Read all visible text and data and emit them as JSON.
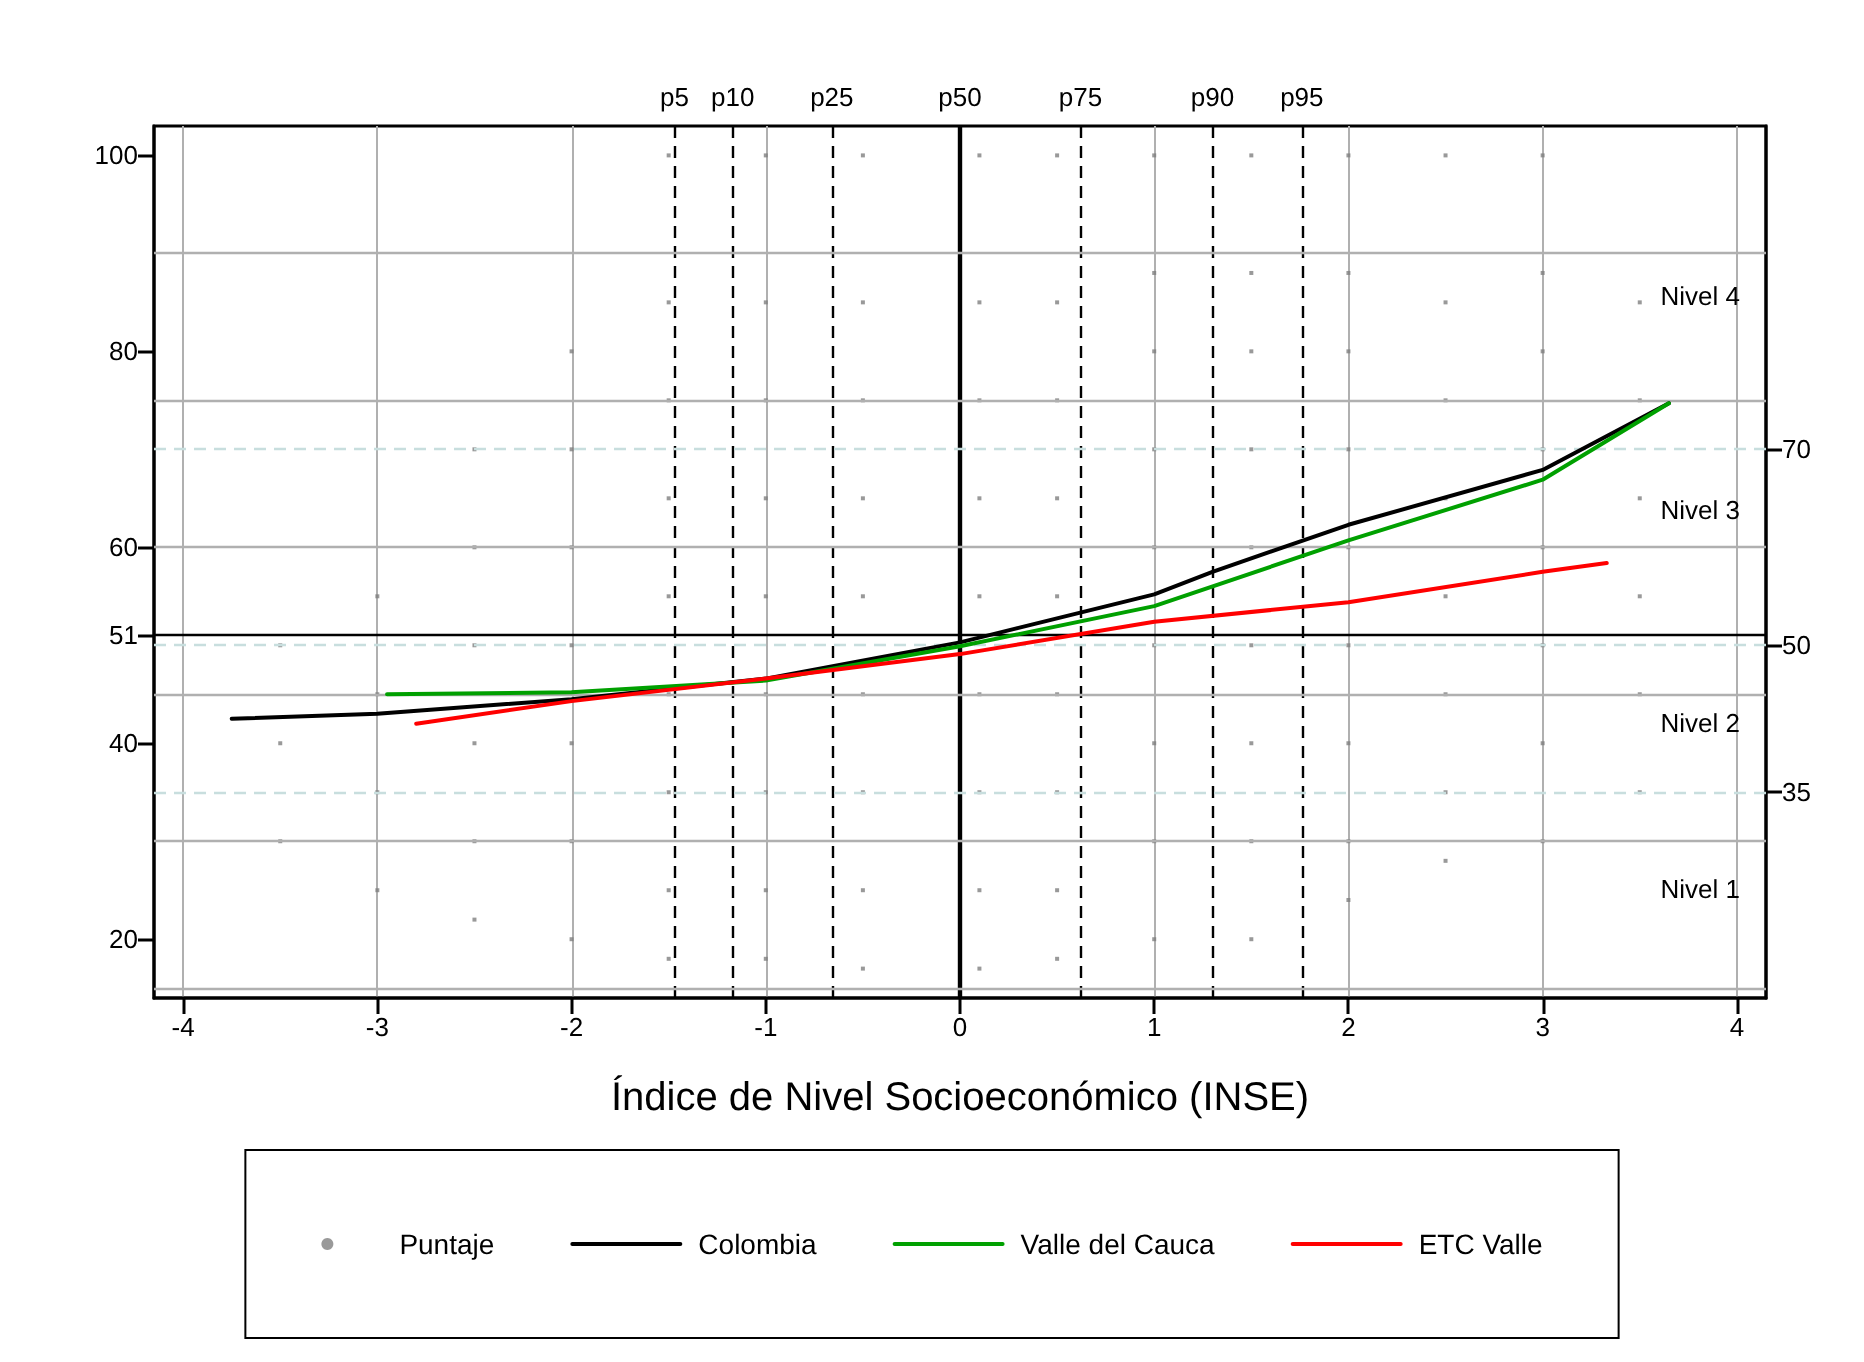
{
  "chart_data": {
    "type": "scatter",
    "xlabel": "Índice de Nivel Socioeconómico (INSE)",
    "xlim": [
      -4.15,
      4.15
    ],
    "xticks": [
      -4,
      -3,
      -2,
      -1,
      0,
      1,
      2,
      3,
      4
    ],
    "ylim": [
      14,
      103
    ],
    "yticks": [
      20,
      40,
      51,
      60,
      80,
      100
    ],
    "y2lim": [
      14,
      103
    ],
    "y2ticks": [
      35,
      50,
      70
    ],
    "grid": "x",
    "legend": "bottom",
    "marker": "none",
    "line_style": "solid",
    "series": [
      {
        "name": "Puntaje",
        "marker": "square",
        "color": "#808080",
        "x": [
          -3.5,
          -3.5,
          -3.5,
          -3,
          -3,
          -3,
          -3,
          -2.5,
          -2.5,
          -2.5,
          -2.5,
          -2.5,
          -2.5,
          -2,
          -2,
          -2,
          -2,
          -2,
          -2,
          -2,
          -1.5,
          -1.5,
          -1.5,
          -1.5,
          -1.5,
          -1.5,
          -1.5,
          -1.5,
          -1.5,
          -1,
          -1,
          -1,
          -1,
          -1,
          -1,
          -1,
          -1,
          -1,
          -0.5,
          -0.5,
          -0.5,
          -0.5,
          -0.5,
          -0.5,
          -0.5,
          -0.5,
          -0.5,
          0.1,
          0.1,
          0.1,
          0.1,
          0.1,
          0.1,
          0.1,
          0.1,
          0.1,
          0.5,
          0.5,
          0.5,
          0.5,
          0.5,
          0.5,
          0.5,
          0.5,
          0.5,
          1,
          1,
          1,
          1,
          1,
          1,
          1,
          1,
          1,
          1.5,
          1.5,
          1.5,
          1.5,
          1.5,
          1.5,
          1.5,
          1.5,
          1.5,
          2,
          2,
          2,
          2,
          2,
          2,
          2,
          2,
          2,
          2.5,
          2.5,
          2.5,
          2.5,
          2.5,
          2.5,
          2.5,
          2.5,
          3,
          3,
          3,
          3,
          3,
          3,
          3,
          3,
          3.5,
          3.5,
          3.5,
          3.5,
          3.5,
          3.5
        ],
        "values": [
          30,
          40,
          50,
          25,
          35,
          45,
          55,
          22,
          30,
          40,
          50,
          60,
          70,
          20,
          30,
          40,
          50,
          60,
          70,
          80,
          18,
          25,
          35,
          45,
          55,
          65,
          75,
          85,
          100,
          18,
          25,
          35,
          45,
          55,
          65,
          75,
          85,
          100,
          17,
          25,
          35,
          45,
          55,
          65,
          75,
          85,
          100,
          17,
          25,
          35,
          45,
          55,
          65,
          75,
          85,
          100,
          18,
          25,
          35,
          45,
          55,
          65,
          75,
          85,
          100,
          20,
          30,
          40,
          50,
          60,
          70,
          80,
          88,
          100,
          20,
          30,
          40,
          50,
          60,
          70,
          80,
          88,
          100,
          24,
          30,
          40,
          50,
          60,
          70,
          80,
          88,
          100,
          28,
          35,
          45,
          55,
          65,
          75,
          85,
          100,
          30,
          40,
          50,
          60,
          70,
          80,
          88,
          100,
          35,
          45,
          55,
          65,
          75,
          85
        ]
      },
      {
        "name": "Colombia",
        "type": "line",
        "color": "#000000",
        "x": [
          -3.75,
          -3,
          -2,
          -1,
          0,
          1,
          1.3,
          2,
          3,
          3.65
        ],
        "values": [
          42.5,
          43.0,
          44.5,
          46.6,
          50.3,
          55.2,
          57.5,
          62.3,
          67.9,
          74.7
        ]
      },
      {
        "name": "Valle del Cauca",
        "type": "line",
        "color": "#00a000",
        "x": [
          -2.95,
          -2,
          -1,
          0,
          1,
          2,
          3,
          3.65
        ],
        "values": [
          45.0,
          45.2,
          46.4,
          49.9,
          54.0,
          60.7,
          66.9,
          74.7
        ]
      },
      {
        "name": "ETC Valle",
        "type": "line",
        "color": "#ff0000",
        "x": [
          -2.8,
          -2,
          -1,
          0,
          1,
          2,
          3,
          3.33
        ],
        "values": [
          42.0,
          44.3,
          46.6,
          49.1,
          52.4,
          54.4,
          57.5,
          58.4
        ]
      }
    ],
    "ref_lines": [
      {
        "axis": "x",
        "value": -1.47,
        "label": "p5",
        "color": "#000000",
        "line_style": "dashed"
      },
      {
        "axis": "x",
        "value": -1.17,
        "label": "p10",
        "color": "#000000",
        "line_style": "dashed"
      },
      {
        "axis": "x",
        "value": -0.66,
        "label": "p25",
        "color": "#000000",
        "line_style": "dashed"
      },
      {
        "axis": "x",
        "value": 0,
        "label": "p50",
        "color": "#000000",
        "line_style": "solid"
      },
      {
        "axis": "x",
        "value": 0.62,
        "label": "p75",
        "color": "#000000",
        "line_style": "dashed"
      },
      {
        "axis": "x",
        "value": 1.3,
        "label": "p90",
        "color": "#000000",
        "line_style": "dashed"
      },
      {
        "axis": "x",
        "value": 1.76,
        "label": "p95",
        "color": "#000000",
        "line_style": "dashed"
      },
      {
        "axis": "y",
        "value": 51,
        "label": null,
        "color": "#000000",
        "line_style": "solid"
      },
      {
        "axis": "y",
        "value": 15,
        "label": null,
        "color": "#b0b0b0",
        "line_style": "solid"
      },
      {
        "axis": "y",
        "value": 30,
        "label": null,
        "color": "#b0b0b0",
        "line_style": "solid"
      },
      {
        "axis": "y",
        "value": 45,
        "label": null,
        "color": "#b0b0b0",
        "line_style": "solid"
      },
      {
        "axis": "y",
        "value": 60,
        "label": null,
        "color": "#b0b0b0",
        "line_style": "solid"
      },
      {
        "axis": "y",
        "value": 75,
        "label": null,
        "color": "#b0b0b0",
        "line_style": "solid"
      },
      {
        "axis": "y",
        "value": 90,
        "label": null,
        "color": "#b0b0b0",
        "line_style": "solid"
      },
      {
        "axis": "y2",
        "value": 35,
        "label": null,
        "color": "#c8dede",
        "line_style": "dashed"
      },
      {
        "axis": "y2",
        "value": 50,
        "label": null,
        "color": "#c8dede",
        "line_style": "dashed"
      },
      {
        "axis": "y2",
        "value": 70,
        "label": null,
        "color": "#c8dede",
        "line_style": "dashed"
      }
    ],
    "annotations": [
      "Nivel 4",
      "Nivel 3",
      "Nivel 2",
      "Nivel 1"
    ]
  }
}
